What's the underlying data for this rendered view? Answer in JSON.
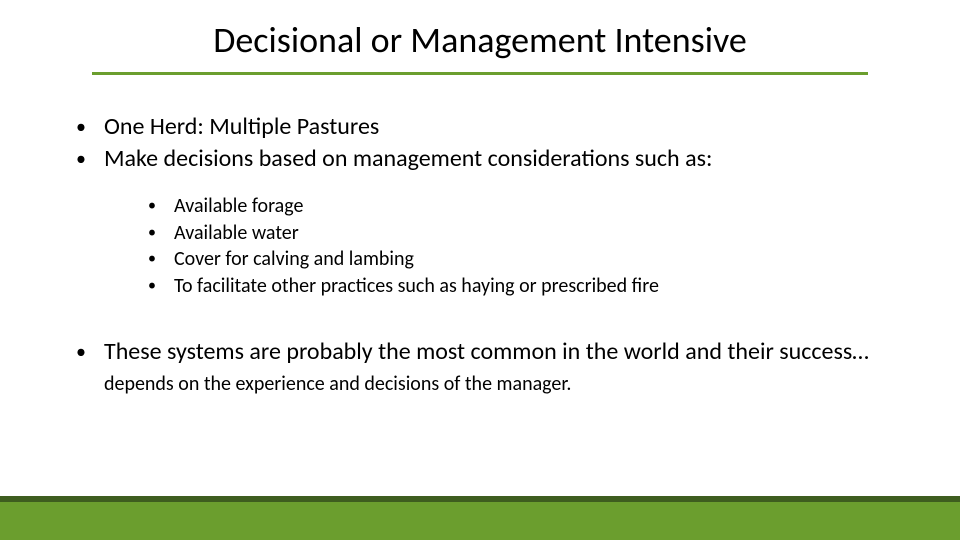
{
  "colors": {
    "background": "#ffffff",
    "text": "#000000",
    "rule": "#6b9e2e",
    "footer_bar": "#6b9e2e",
    "footer_dark": "#3e5d1f"
  },
  "typography": {
    "title_fontsize": 36,
    "main_fontsize": 24,
    "sub_fontsize": 20,
    "closing_fontsize": 24,
    "closing_trail_fontsize": 20,
    "font_family": "Calibri"
  },
  "title": "Decisional or Management Intensive",
  "main_bullets": [
    "One Herd:  Multiple Pastures",
    "Make decisions based on management considerations such as:"
  ],
  "sub_bullets": [
    "Available forage",
    "Available water",
    "Cover for calving and lambing",
    "To facilitate other practices such as haying or prescribed fire"
  ],
  "closing": {
    "lead": "These systems are probably the most common in the world and their success…",
    "trail": "depends on the experience and decisions of the manager."
  }
}
